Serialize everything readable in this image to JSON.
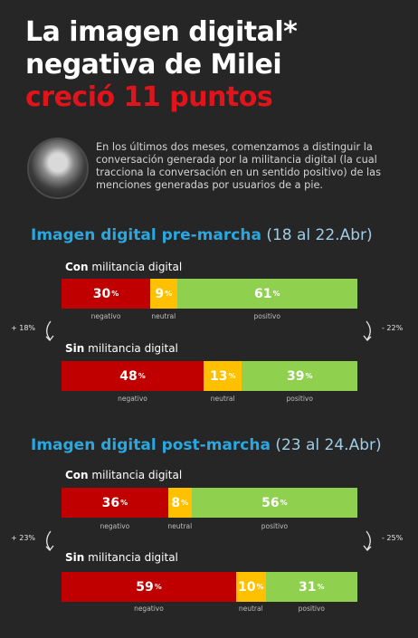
{
  "title": {
    "line1": "La imagen digital*",
    "line2": "negativa de Milei",
    "line3": "creció 11 puntos"
  },
  "intro": "En los últimos dos meses, comenzamos a distinguir la conversación generada por la militancia digital (la cual tracciona la conversación en un sentido positivo) de las menciones generadas por usuarios de a pie.",
  "colors": {
    "negativo": "#c00000",
    "neutral": "#ffc000",
    "positivo": "#8fd14f",
    "accent": "#2aa7df",
    "title_red": "#e1141c"
  },
  "chart_data": [
    {
      "type": "bar",
      "stacked": true,
      "orientation": "horizontal",
      "title": "Imagen digital pre-marcha",
      "dates": "(18 al 22.Abr)",
      "categories": [
        "negativo",
        "neutral",
        "positivo"
      ],
      "groups": [
        {
          "bold": "Con",
          "rest": " militancia digital",
          "values": [
            30,
            9,
            61
          ]
        },
        {
          "bold": "Sin",
          "rest": " militancia digital",
          "values": [
            48,
            13,
            39
          ]
        }
      ],
      "deltas": {
        "left": "+ 18%",
        "right": "- 22%"
      }
    },
    {
      "type": "bar",
      "stacked": true,
      "orientation": "horizontal",
      "title": "Imagen digital post-marcha",
      "dates": "(23 al 24.Abr)",
      "categories": [
        "negativo",
        "neutral",
        "positivo"
      ],
      "groups": [
        {
          "bold": "Con",
          "rest": " militancia digital",
          "values": [
            36,
            8,
            56
          ]
        },
        {
          "bold": "Sin",
          "rest": " militancia digital",
          "values": [
            59,
            10,
            31
          ]
        }
      ],
      "deltas": {
        "left": "+ 23%",
        "right": "- 25%"
      }
    }
  ]
}
